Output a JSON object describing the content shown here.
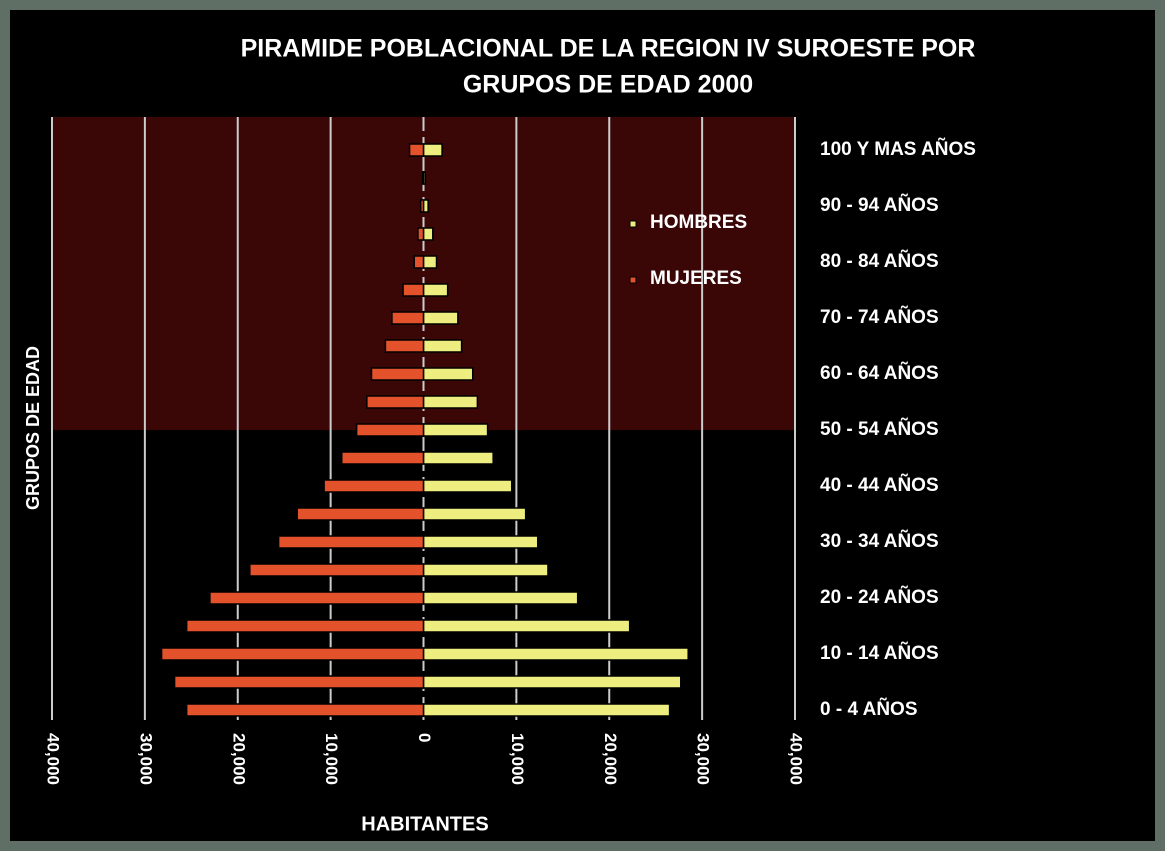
{
  "chart_data": {
    "type": "pyramid",
    "title": [
      "PIRAMIDE POBLACIONAL DE LA REGION IV SUROESTE POR",
      "GRUPOS DE EDAD  2000"
    ],
    "x_label": "HABITANTES",
    "y_label": "GRUPOS DE EDAD",
    "categories": [
      "0 -    4 AÑOS",
      null,
      "10 - 14 AÑOS",
      null,
      "20 - 24 AÑOS",
      null,
      "30 - 34 AÑOS",
      null,
      "40 - 44 AÑOS",
      null,
      "50 - 54 AÑOS",
      null,
      "60 - 64 AÑOS",
      null,
      "70 - 74 AÑOS",
      null,
      "80 - 84 AÑOS",
      null,
      "90 - 94 AÑOS",
      null,
      "100 Y MAS AÑOS"
    ],
    "series": [
      {
        "name": "HOMBRES",
        "color": "#eeee80",
        "values": [
          26500,
          27700,
          28500,
          22200,
          16600,
          13400,
          12300,
          11000,
          9500,
          7500,
          6900,
          5800,
          5300,
          4100,
          3700,
          2600,
          1400,
          1000,
          500,
          200,
          2000
        ]
      },
      {
        "name": "MUJERES",
        "color": "#e4522c",
        "values": [
          -25500,
          -26800,
          -28200,
          -25500,
          -23000,
          -18700,
          -15600,
          -13600,
          -10700,
          -8800,
          -7200,
          -6100,
          -5600,
          -4100,
          -3400,
          -2200,
          -1000,
          -600,
          -300,
          -100,
          -1500
        ]
      }
    ],
    "xlim": [
      -40000,
      40000
    ],
    "xticks": [
      {
        "value": -40000,
        "label": "40,000"
      },
      {
        "value": -30000,
        "label": "30,000"
      },
      {
        "value": -20000,
        "label": "20,000"
      },
      {
        "value": -10000,
        "label": "10,000"
      },
      0,
      {
        "value": 10000,
        "label": "10,000"
      },
      {
        "value": 20000,
        "label": "20,000"
      },
      {
        "value": 30000,
        "label": "30,000"
      },
      {
        "value": 40000,
        "label": "40,000"
      }
    ],
    "grid": true
  }
}
